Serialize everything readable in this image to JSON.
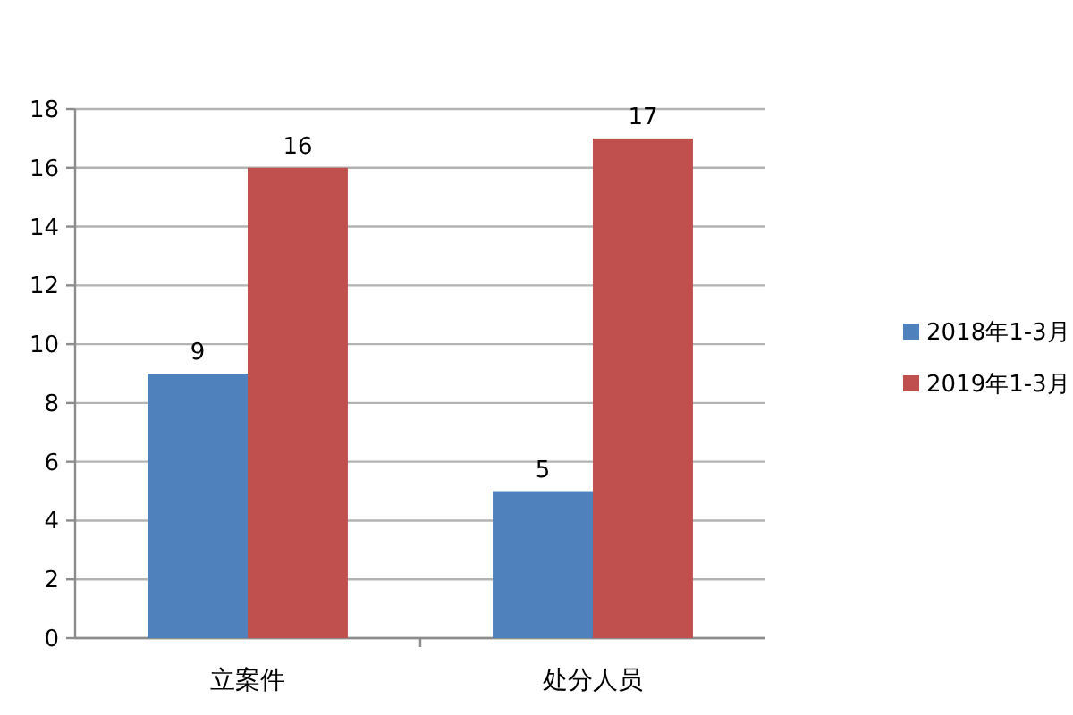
{
  "chart_data": {
    "type": "bar",
    "categories": [
      "立案件",
      "处分人员"
    ],
    "series": [
      {
        "name": "2018年1-3月",
        "color": "#4f81bd",
        "values": [
          9,
          5
        ]
      },
      {
        "name": "2019年1-3月",
        "color": "#c0504d",
        "values": [
          16,
          17
        ]
      }
    ],
    "ylim": [
      0,
      18
    ],
    "yticks": [
      0,
      2,
      4,
      6,
      8,
      10,
      12,
      14,
      16,
      18
    ],
    "grid": "y",
    "legend": "right",
    "data_labels": true
  }
}
